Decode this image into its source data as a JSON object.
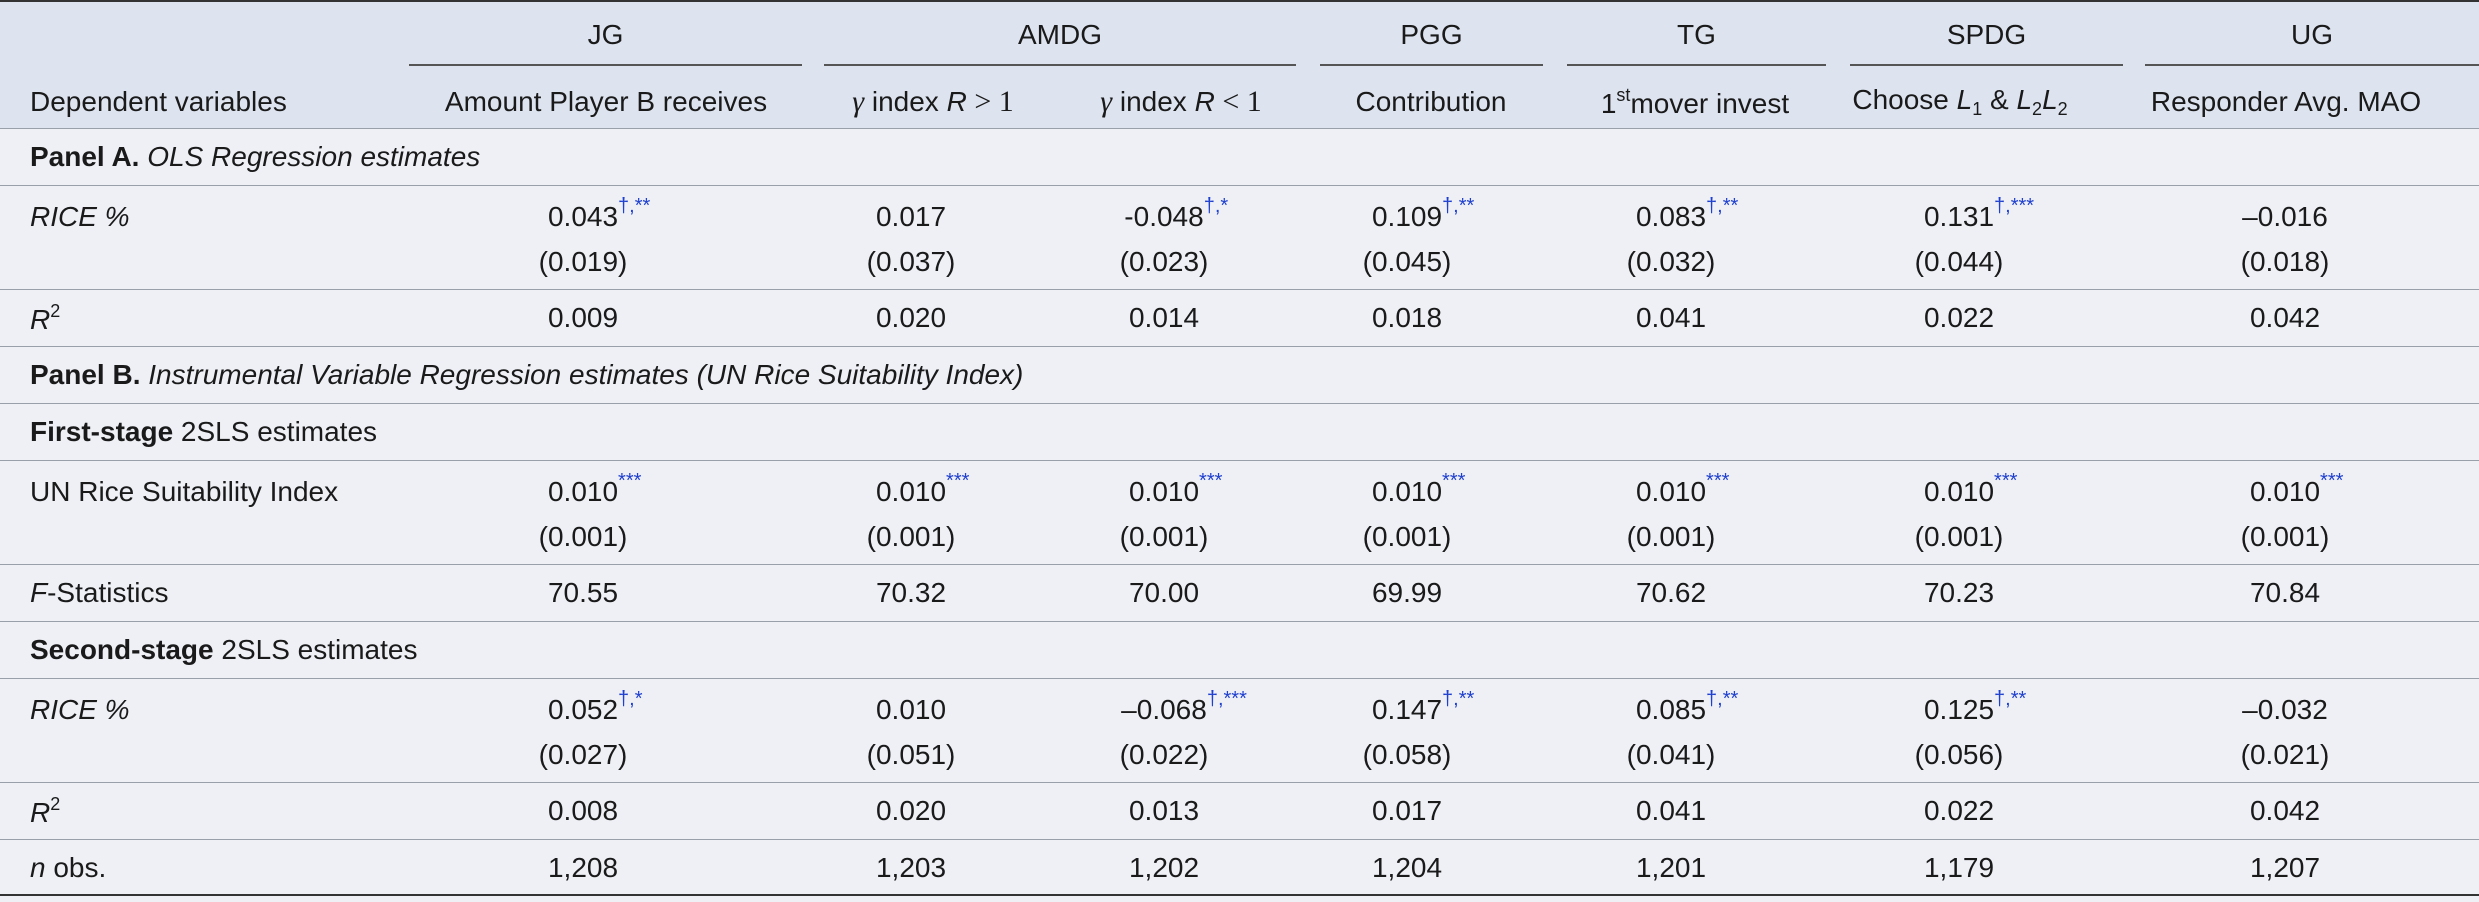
{
  "table": {
    "header": {
      "row_label": "Dependent variables",
      "games": [
        {
          "name": "JG",
          "span": 1
        },
        {
          "name": "AMDG",
          "span": 2
        },
        {
          "name": "PGG",
          "span": 1
        },
        {
          "name": "TG",
          "span": 1
        },
        {
          "name": "SPDG",
          "span": 1
        },
        {
          "name": "UG",
          "span": 1
        }
      ],
      "columns": [
        [
          {
            "text": "Amount Player B receives"
          }
        ],
        [
          {
            "text": "γ",
            "style": "math"
          },
          {
            "text": " index "
          },
          {
            "text": "R",
            "style": "italic"
          },
          {
            "text": " > 1",
            "style": "math-op"
          }
        ],
        [
          {
            "text": "γ",
            "style": "math"
          },
          {
            "text": " index "
          },
          {
            "text": "R",
            "style": "italic"
          },
          {
            "text": " < 1",
            "style": "math-op"
          }
        ],
        [
          {
            "text": "Contribution"
          }
        ],
        [
          {
            "text": "1"
          },
          {
            "text": "st",
            "style": "sup"
          },
          {
            "text": "mover invest"
          }
        ],
        [
          {
            "text": "Choose "
          },
          {
            "text": "L",
            "style": "italic"
          },
          {
            "text": "1",
            "style": "sub"
          },
          {
            "text": " & "
          },
          {
            "text": "L",
            "style": "italic"
          },
          {
            "text": "2",
            "style": "sub"
          },
          {
            "text": "L",
            "style": "italic"
          },
          {
            "text": "2",
            "style": "sub"
          }
        ],
        [
          {
            "text": "Responder Avg. MAO"
          }
        ]
      ]
    },
    "rows": [
      {
        "label": [
          {
            "text": "Panel A.",
            "style": "bold"
          },
          {
            "text": " "
          },
          {
            "text": "OLS Regression estimates",
            "style": "italic"
          }
        ]
      },
      {
        "label": [
          {
            "text": "RICE %",
            "style": "italic"
          }
        ],
        "cells": [
          {
            "value": "0.043",
            "sig": "†,**"
          },
          {
            "value": "0.017"
          },
          {
            "value": "-0.048",
            "sig": "†,*"
          },
          {
            "value": "0.109",
            "sig": "†,**"
          },
          {
            "value": "0.083",
            "sig": "†,**"
          },
          {
            "value": "0.131",
            "sig": "†,***"
          },
          {
            "value": "–0.016"
          }
        ],
        "se": [
          "(0.019)",
          "(0.037)",
          "(0.023)",
          "(0.045)",
          "(0.032)",
          "(0.044)",
          "(0.018)"
        ]
      },
      {
        "label": [
          {
            "text": "R",
            "style": "italic"
          },
          {
            "text": "2",
            "style": "sup"
          }
        ],
        "cells": [
          {
            "value": "0.009"
          },
          {
            "value": "0.020"
          },
          {
            "value": "0.014"
          },
          {
            "value": "0.018"
          },
          {
            "value": "0.041"
          },
          {
            "value": "0.022"
          },
          {
            "value": "0.042"
          }
        ]
      },
      {
        "label": [
          {
            "text": "Panel B.",
            "style": "bold"
          },
          {
            "text": " "
          },
          {
            "text": "Instrumental Variable Regression estimates (UN Rice Suitability Index)",
            "style": "italic"
          }
        ]
      },
      {
        "label": [
          {
            "text": "First-stage",
            "style": "bold"
          },
          {
            "text": " 2SLS estimates"
          }
        ]
      },
      {
        "label": [
          {
            "text": "UN Rice Suitability Index"
          }
        ],
        "cells": [
          {
            "value": "0.010",
            "sig": "***"
          },
          {
            "value": "0.010",
            "sig": "***"
          },
          {
            "value": "0.010",
            "sig": "***"
          },
          {
            "value": "0.010",
            "sig": "***"
          },
          {
            "value": "0.010",
            "sig": "***"
          },
          {
            "value": "0.010",
            "sig": "***"
          },
          {
            "value": "0.010",
            "sig": "***"
          }
        ],
        "se": [
          "(0.001)",
          "(0.001)",
          "(0.001)",
          "(0.001)",
          "(0.001)",
          "(0.001)",
          "(0.001)"
        ]
      },
      {
        "label": [
          {
            "text": "F",
            "style": "italic"
          },
          {
            "text": "-Statistics"
          }
        ],
        "cells": [
          {
            "value": "70.55"
          },
          {
            "value": "70.32"
          },
          {
            "value": "70.00"
          },
          {
            "value": "69.99"
          },
          {
            "value": "70.62"
          },
          {
            "value": "70.23"
          },
          {
            "value": "70.84"
          }
        ]
      },
      {
        "label": [
          {
            "text": "Second-stage",
            "style": "bold"
          },
          {
            "text": " 2SLS estimates"
          }
        ]
      },
      {
        "label": [
          {
            "text": "RICE %",
            "style": "italic"
          }
        ],
        "cells": [
          {
            "value": "0.052",
            "sig": "†,*"
          },
          {
            "value": "0.010"
          },
          {
            "value": "–0.068",
            "sig": "†,***"
          },
          {
            "value": "0.147",
            "sig": "†,**"
          },
          {
            "value": "0.085",
            "sig": "†,**"
          },
          {
            "value": "0.125",
            "sig": "†,**"
          },
          {
            "value": "–0.032"
          }
        ],
        "se": [
          "(0.027)",
          "(0.051)",
          "(0.022)",
          "(0.058)",
          "(0.041)",
          "(0.056)",
          "(0.021)"
        ]
      },
      {
        "label": [
          {
            "text": "R",
            "style": "italic"
          },
          {
            "text": "2",
            "style": "sup"
          }
        ],
        "cells": [
          {
            "value": "0.008"
          },
          {
            "value": "0.020"
          },
          {
            "value": "0.013"
          },
          {
            "value": "0.017"
          },
          {
            "value": "0.041"
          },
          {
            "value": "0.022"
          },
          {
            "value": "0.042"
          }
        ]
      },
      {
        "label": [
          {
            "text": "n",
            "style": "italic"
          },
          {
            "text": " obs."
          }
        ],
        "cells": [
          {
            "value": "1,208"
          },
          {
            "value": "1,203"
          },
          {
            "value": "1,202"
          },
          {
            "value": "1,204"
          },
          {
            "value": "1,201"
          },
          {
            "value": "1,179"
          },
          {
            "value": "1,207"
          }
        ]
      }
    ]
  }
}
